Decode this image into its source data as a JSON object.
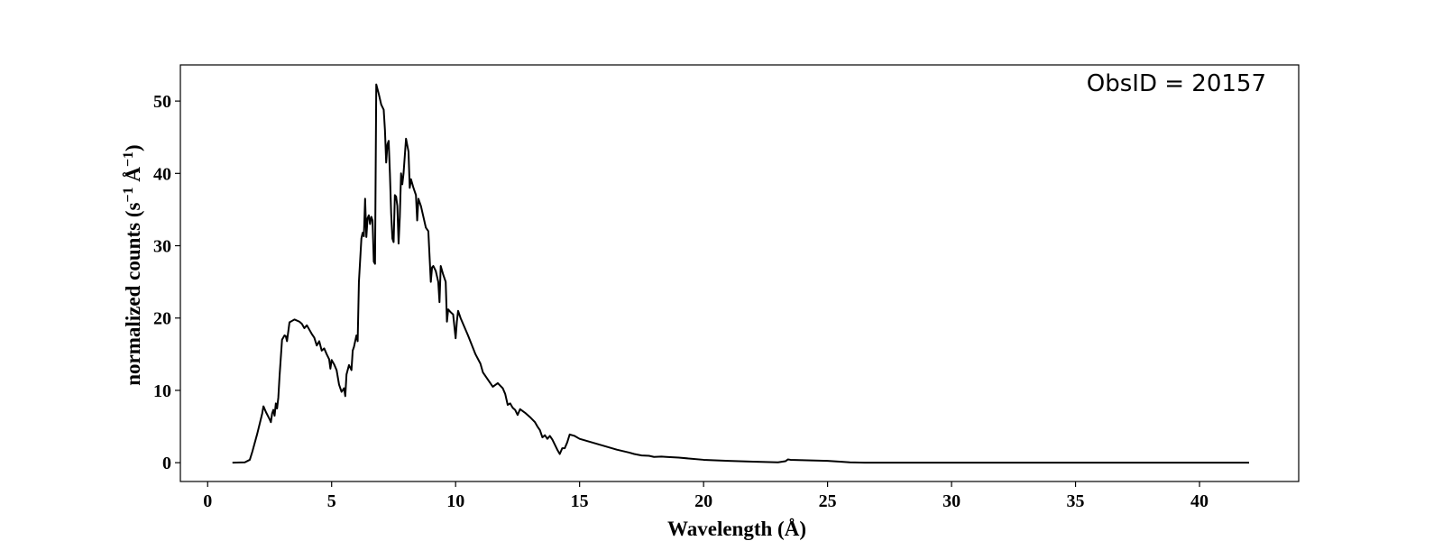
{
  "chart_data": {
    "type": "line",
    "title": "",
    "xlabel": "Wavelength (Å)",
    "ylabel_main": "normalized counts (s",
    "ylabel_exp1": "−1",
    "ylabel_mid": " Å",
    "ylabel_exp2": "−1",
    "ylabel_end": ")",
    "annotation": "ObsID = 20157",
    "xlim": [
      -1.1,
      44.0
    ],
    "ylim": [
      -2.6,
      55.0
    ],
    "xticks": [
      0,
      5,
      10,
      15,
      20,
      25,
      30,
      35,
      40
    ],
    "yticks": [
      0,
      10,
      20,
      30,
      40,
      50
    ],
    "line_color": "#000000",
    "grid": false,
    "series": [
      {
        "x": [
          1.0,
          1.5,
          1.7,
          1.8,
          2.0,
          2.2,
          2.25,
          2.35,
          2.5,
          2.55,
          2.6,
          2.65,
          2.7,
          2.75,
          2.8,
          2.85,
          2.9,
          3.0,
          3.1,
          3.15,
          3.2,
          3.3,
          3.4,
          3.5,
          3.7,
          3.8,
          3.9,
          4.0,
          4.1,
          4.2,
          4.3,
          4.4,
          4.5,
          4.6,
          4.7,
          4.8,
          4.9,
          4.95,
          5.0,
          5.1,
          5.2,
          5.3,
          5.4,
          5.5,
          5.55,
          5.6,
          5.7,
          5.8,
          5.85,
          5.9,
          6.0,
          6.05,
          6.1,
          6.2,
          6.25,
          6.3,
          6.35,
          6.4,
          6.45,
          6.5,
          6.55,
          6.6,
          6.65,
          6.7,
          6.75,
          6.8,
          6.9,
          7.0,
          7.1,
          7.15,
          7.2,
          7.25,
          7.3,
          7.35,
          7.4,
          7.45,
          7.5,
          7.55,
          7.6,
          7.65,
          7.7,
          7.75,
          7.8,
          7.85,
          7.9,
          8.0,
          8.1,
          8.15,
          8.2,
          8.3,
          8.4,
          8.45,
          8.5,
          8.55,
          8.6,
          8.7,
          8.8,
          8.9,
          9.0,
          9.05,
          9.1,
          9.2,
          9.3,
          9.35,
          9.4,
          9.5,
          9.6,
          9.65,
          9.7,
          9.8,
          9.9,
          10.0,
          10.05,
          10.1,
          10.2,
          10.5,
          10.8,
          11.0,
          11.1,
          11.2,
          11.3,
          11.4,
          11.5,
          11.7,
          11.9,
          12.0,
          12.1,
          12.2,
          12.3,
          12.4,
          12.5,
          12.6,
          12.8,
          13.0,
          13.2,
          13.3,
          13.4,
          13.5,
          13.6,
          13.7,
          13.8,
          13.9,
          14.0,
          14.1,
          14.2,
          14.3,
          14.4,
          14.5,
          14.6,
          14.8,
          15.0,
          15.5,
          16.0,
          16.5,
          17.0,
          17.2,
          17.5,
          17.8,
          18.0,
          18.3,
          18.5,
          19.0,
          19.5,
          20.0,
          21.0,
          22.0,
          23.0,
          23.3,
          23.4,
          23.5,
          24.0,
          25.0,
          25.5,
          25.9,
          26.5,
          30.0,
          35.0,
          40.0,
          42.0
        ],
        "y": [
          0.0,
          0.05,
          0.4,
          1.5,
          4.0,
          6.8,
          7.8,
          7.0,
          6.0,
          5.6,
          6.8,
          7.3,
          6.5,
          8.2,
          7.5,
          9.0,
          12.0,
          17.0,
          17.6,
          17.5,
          16.8,
          19.4,
          19.6,
          19.8,
          19.5,
          19.2,
          18.6,
          19.0,
          18.4,
          17.8,
          17.3,
          16.2,
          16.8,
          15.5,
          15.8,
          15.0,
          14.3,
          13.0,
          14.2,
          13.6,
          12.8,
          10.8,
          9.8,
          10.3,
          9.2,
          12.2,
          13.5,
          12.8,
          15.5,
          16.0,
          17.6,
          16.8,
          25.0,
          31.0,
          31.8,
          31.3,
          36.5,
          31.2,
          33.8,
          34.2,
          33.0,
          34.0,
          33.5,
          27.8,
          27.5,
          52.3,
          51.0,
          49.5,
          48.8,
          46.0,
          41.5,
          44.0,
          44.5,
          40.0,
          34.5,
          31.0,
          30.5,
          37.0,
          36.8,
          35.5,
          30.3,
          34.0,
          40.0,
          38.5,
          40.0,
          44.8,
          43.0,
          38.0,
          39.2,
          38.0,
          37.0,
          33.5,
          36.5,
          36.0,
          35.5,
          34.0,
          32.5,
          32.0,
          25.0,
          27.0,
          27.2,
          26.5,
          25.0,
          22.2,
          27.2,
          26.0,
          25.0,
          19.5,
          21.2,
          20.8,
          20.5,
          17.2,
          19.5,
          21.0,
          20.0,
          17.6,
          15.0,
          13.7,
          12.5,
          12.0,
          11.5,
          11.0,
          10.5,
          11.0,
          10.3,
          9.5,
          8.0,
          8.2,
          7.6,
          7.3,
          6.6,
          7.4,
          6.9,
          6.3,
          5.6,
          5.0,
          4.5,
          3.5,
          3.8,
          3.3,
          3.7,
          3.2,
          2.5,
          1.8,
          1.2,
          2.0,
          2.0,
          2.8,
          3.9,
          3.7,
          3.3,
          2.8,
          2.3,
          1.8,
          1.4,
          1.2,
          1.0,
          0.95,
          0.8,
          0.85,
          0.8,
          0.7,
          0.55,
          0.4,
          0.25,
          0.15,
          0.05,
          0.2,
          0.45,
          0.4,
          0.35,
          0.25,
          0.15,
          0.05,
          0.0,
          0.0,
          0.0,
          0.0,
          0.0
        ]
      }
    ]
  }
}
